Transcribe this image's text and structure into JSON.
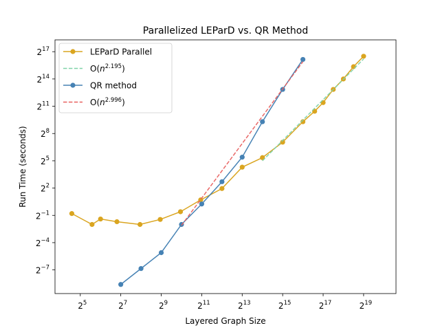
{
  "chart_data": {
    "type": "line",
    "title": "Parallelized LEParD vs. QR Method",
    "xlabel": "Layered Graph Size",
    "ylabel": "Run Time (seconds)",
    "xscale": "log2",
    "yscale": "log2",
    "xlim_log2": [
      3.75,
      20.6
    ],
    "ylim_log2": [
      -9.6,
      18.3
    ],
    "xticks": [
      {
        "exp": 5,
        "base": "2",
        "sup": "5"
      },
      {
        "exp": 7,
        "base": "2",
        "sup": "7"
      },
      {
        "exp": 9,
        "base": "2",
        "sup": "9"
      },
      {
        "exp": 11,
        "base": "2",
        "sup": "11"
      },
      {
        "exp": 13,
        "base": "2",
        "sup": "13"
      },
      {
        "exp": 15,
        "base": "2",
        "sup": "15"
      },
      {
        "exp": 17,
        "base": "2",
        "sup": "17"
      },
      {
        "exp": 19,
        "base": "2",
        "sup": "19"
      }
    ],
    "yticks": [
      {
        "exp": -7,
        "base": "2",
        "sup": "−7"
      },
      {
        "exp": -4,
        "base": "2",
        "sup": "−4"
      },
      {
        "exp": -1,
        "base": "2",
        "sup": "−1"
      },
      {
        "exp": 2,
        "base": "2",
        "sup": "2"
      },
      {
        "exp": 5,
        "base": "2",
        "sup": "5"
      },
      {
        "exp": 8,
        "base": "2",
        "sup": "8"
      },
      {
        "exp": 11,
        "base": "2",
        "sup": "11"
      },
      {
        "exp": 14,
        "base": "2",
        "sup": "14"
      },
      {
        "exp": 17,
        "base": "2",
        "sup": "17"
      }
    ],
    "grid": false,
    "legend_position": "top-left",
    "series": [
      {
        "name": "LEParD Parallel",
        "legend_label": "LEParD Parallel",
        "style": "solid-marker",
        "color": "#DAA520",
        "points_log2": [
          [
            4.58,
            -0.8
          ],
          [
            5.58,
            -2.0
          ],
          [
            6.0,
            -1.4
          ],
          [
            6.81,
            -1.7
          ],
          [
            7.95,
            -2.0
          ],
          [
            8.95,
            -1.45
          ],
          [
            9.95,
            -0.6
          ],
          [
            10.95,
            0.7
          ],
          [
            12.0,
            1.95
          ],
          [
            13.0,
            4.3
          ],
          [
            14.0,
            5.35
          ],
          [
            15.0,
            7.05
          ],
          [
            16.0,
            9.3
          ],
          [
            16.58,
            10.45
          ],
          [
            17.0,
            11.4
          ],
          [
            17.5,
            12.85
          ],
          [
            18.0,
            14.0
          ],
          [
            18.5,
            15.35
          ],
          [
            19.0,
            16.5
          ]
        ]
      },
      {
        "name": "O(n^2.195) fit",
        "legend_label": "O(n",
        "legend_sup": "2.195",
        "legend_suffix": ")",
        "style": "dashed",
        "color": "#7FD1A8",
        "points_log2": [
          [
            14.0,
            5.0
          ],
          [
            19.0,
            16.2
          ]
        ]
      },
      {
        "name": "QR method",
        "legend_label": "QR method",
        "style": "solid-marker",
        "color": "#4682B4",
        "points_log2": [
          [
            7.0,
            -8.6
          ],
          [
            8.0,
            -6.85
          ],
          [
            9.0,
            -5.1
          ],
          [
            10.0,
            -2.0
          ],
          [
            11.0,
            0.25
          ],
          [
            12.0,
            2.7
          ],
          [
            13.0,
            5.4
          ],
          [
            14.0,
            9.3
          ],
          [
            15.0,
            12.85
          ],
          [
            16.0,
            16.15
          ]
        ]
      },
      {
        "name": "O(n^2.996) fit",
        "legend_label": "O(n",
        "legend_sup": "2.996",
        "legend_suffix": ")",
        "style": "dashed",
        "color": "#E8605F",
        "points_log2": [
          [
            10.0,
            -2.1
          ],
          [
            16.0,
            15.9
          ]
        ]
      }
    ]
  }
}
